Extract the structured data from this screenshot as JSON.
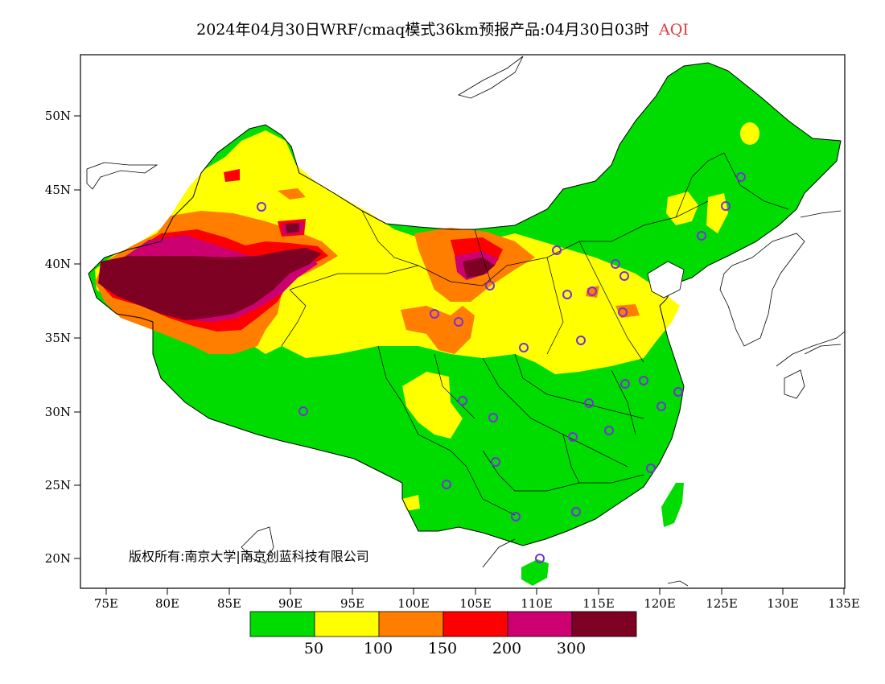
{
  "title": {
    "main": "2024年04月30日WRF/cmaq模式36km预报产品:04月30日03时",
    "variable": "AQI",
    "variable_color": "#e03a3a"
  },
  "axes": {
    "y_labels": [
      "50N",
      "45N",
      "40N",
      "35N",
      "30N",
      "25N",
      "20N"
    ],
    "x_labels": [
      "75E",
      "80E",
      "85E",
      "90E",
      "95E",
      "100E",
      "105E",
      "110E",
      "115E",
      "120E",
      "125E",
      "130E",
      "135E"
    ]
  },
  "copyright": "版权所有:南京大学|南京创蓝科技有限公司",
  "legend": {
    "colors": [
      "#00dc00",
      "#ffff00",
      "#ff7e00",
      "#ff0000",
      "#cc0070",
      "#7e0023"
    ],
    "ticks": [
      "50",
      "100",
      "150",
      "200",
      "300"
    ]
  }
}
